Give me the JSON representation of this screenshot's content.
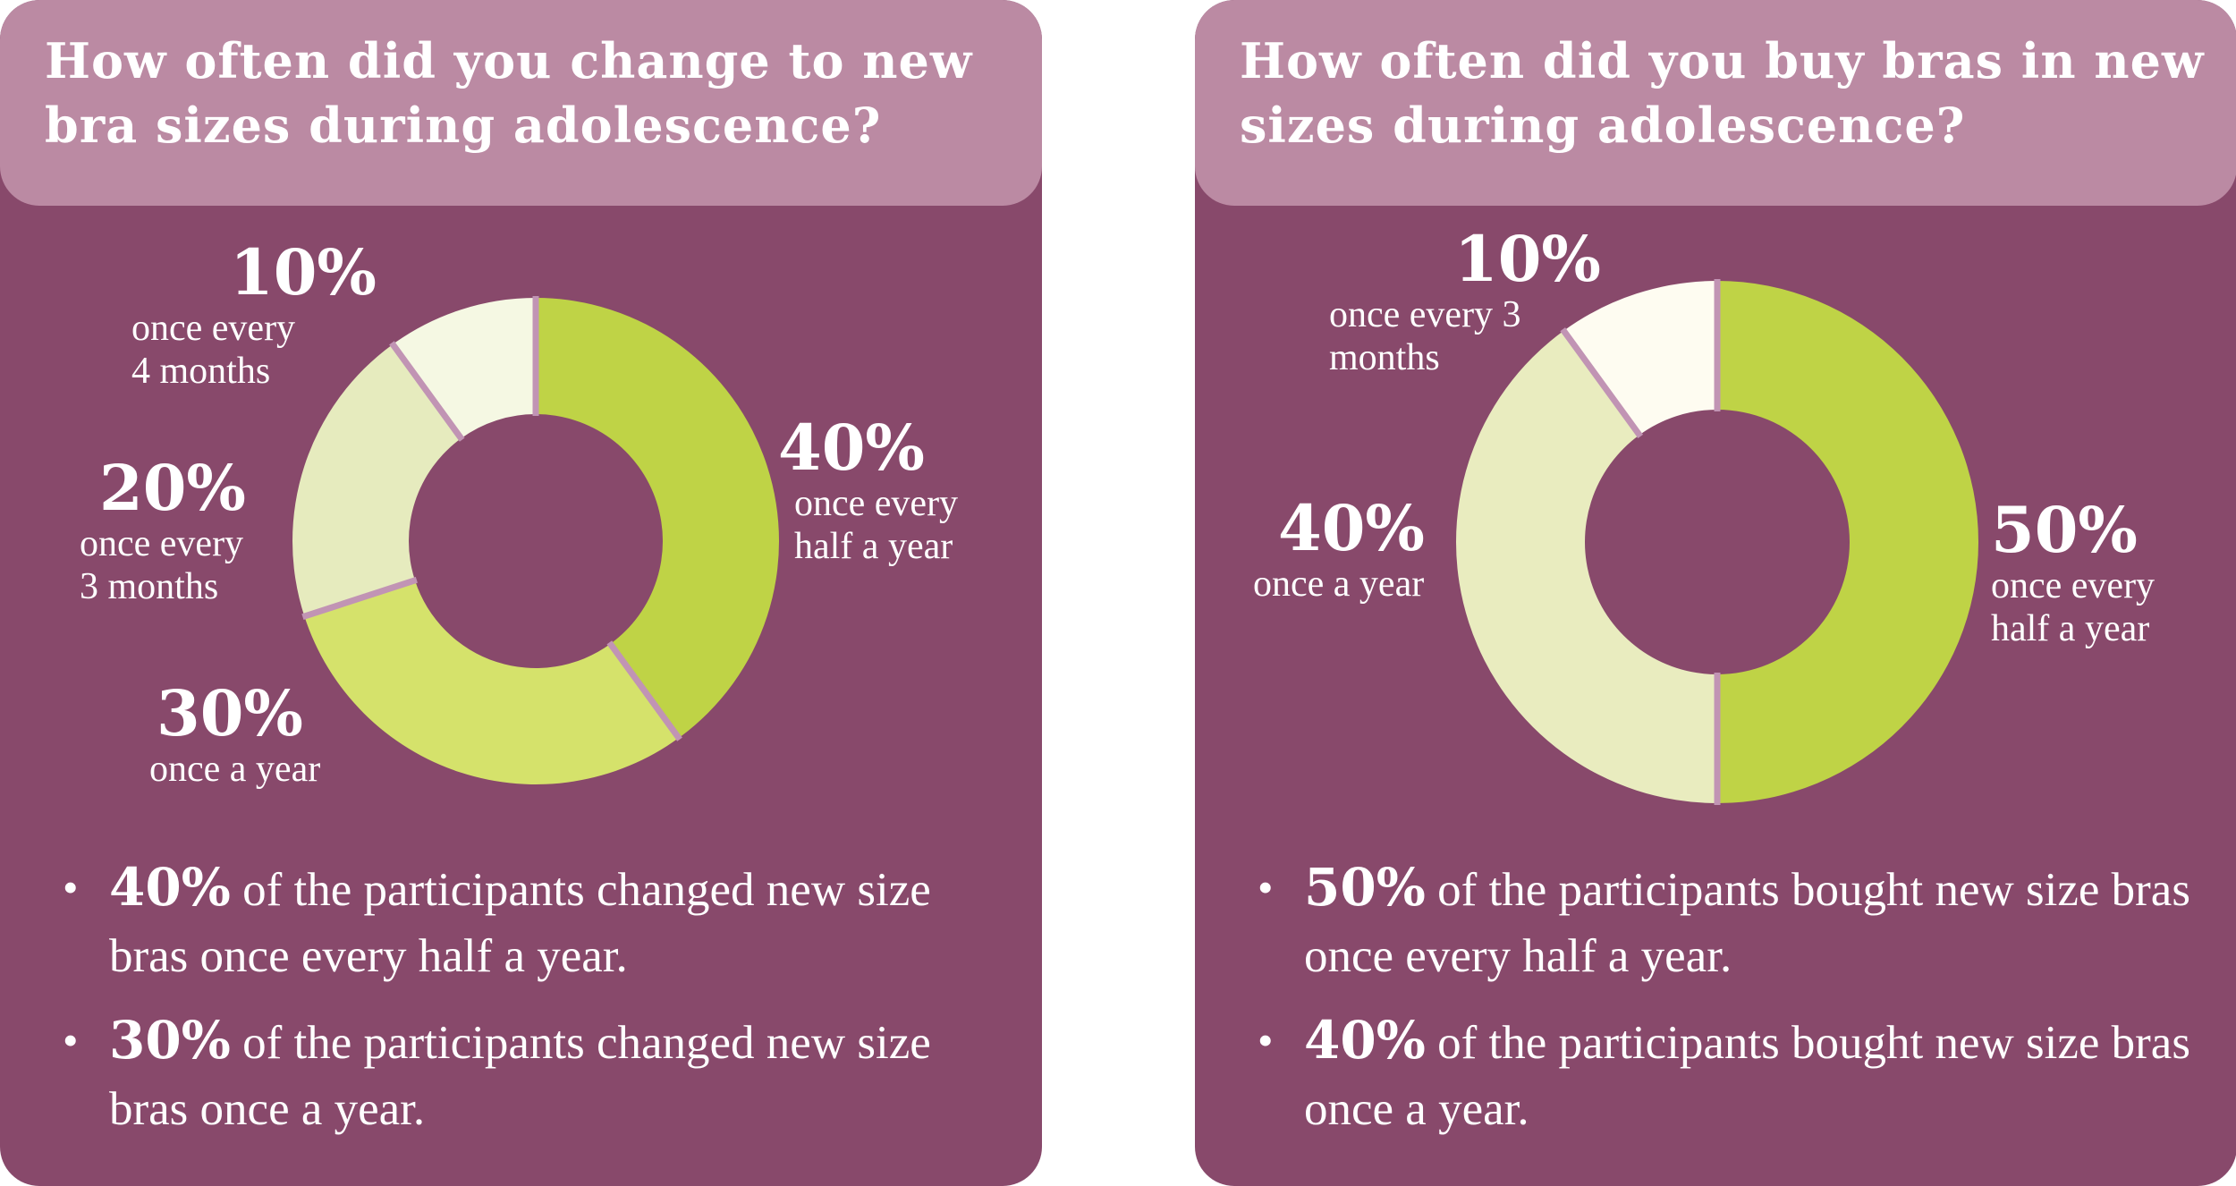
{
  "panels": [
    {
      "title": "How often did you change to new bra sizes during adolescence?",
      "bullets": [
        {
          "pct": "40%",
          "text": " of the participants changed new size bras once every half a year."
        },
        {
          "pct": "30%",
          "text": " of the participants changed new size bras once a year."
        }
      ]
    },
    {
      "title": "How often did you buy bras in new sizes during adolescence?",
      "bullets": [
        {
          "pct": "50%",
          "text": " of the participants bought new size bras once every half a year."
        },
        {
          "pct": "40%",
          "text": " of the participants bought new size bras once a year."
        }
      ]
    }
  ],
  "chart_data": [
    {
      "type": "pie",
      "title": "How often did you change to new bra sizes during adolescence?",
      "slices": [
        {
          "value": 40,
          "pct_label": "40%",
          "label": "once every\nhalf a year",
          "color": "#bfd346"
        },
        {
          "value": 30,
          "pct_label": "30%",
          "label": "once a year",
          "color": "#d5e26b"
        },
        {
          "value": 20,
          "pct_label": "20%",
          "label": "once every\n3 months",
          "color": "#e6ebbe"
        },
        {
          "value": 10,
          "pct_label": "10%",
          "label": "once every\n4 months",
          "color": "#f5f8e3"
        }
      ]
    },
    {
      "type": "pie",
      "title": "How often did you buy bras in new sizes during adolescence?",
      "slices": [
        {
          "value": 50,
          "pct_label": "50%",
          "label": "once every\nhalf a year",
          "color": "#bfd346"
        },
        {
          "value": 40,
          "pct_label": "40%",
          "label": "once a year",
          "color": "#e9ecbf"
        },
        {
          "value": 10,
          "pct_label": "10%",
          "label": "once every 3\nmonths",
          "color": "#fefcf1"
        }
      ]
    }
  ],
  "colors": {
    "panel_bg": "#88496b",
    "header_bg": "#bb8aa3",
    "divider": "#c194b4",
    "text": "#ffffff"
  }
}
